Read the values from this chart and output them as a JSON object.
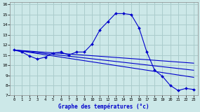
{
  "title": "Graphe des températures (°c)",
  "bg_color": "#cce8e8",
  "grid_color": "#aacccc",
  "line_color": "#0000cc",
  "xlim": [
    -0.5,
    23.5
  ],
  "ylim": [
    7,
    16.2
  ],
  "xticks": [
    0,
    1,
    2,
    3,
    4,
    5,
    6,
    7,
    8,
    9,
    10,
    11,
    12,
    13,
    14,
    15,
    16,
    17,
    18,
    19,
    20,
    21,
    22,
    23
  ],
  "yticks": [
    7,
    8,
    9,
    10,
    11,
    12,
    13,
    14,
    15,
    16
  ],
  "series_main": {
    "x": [
      0,
      1,
      2,
      3,
      4,
      5,
      6,
      7,
      8,
      9,
      10,
      11,
      12,
      13,
      14,
      15,
      16,
      17,
      18,
      19,
      20,
      21,
      22,
      23
    ],
    "y": [
      11.5,
      11.3,
      10.9,
      10.6,
      10.8,
      11.2,
      11.3,
      11.0,
      11.3,
      11.3,
      12.1,
      13.5,
      14.3,
      15.1,
      15.1,
      15.0,
      13.7,
      11.3,
      9.5,
      8.9,
      8.0,
      7.5,
      7.7,
      7.6
    ]
  },
  "fan_lines": [
    {
      "x": [
        0,
        23
      ],
      "y": [
        11.5,
        10.2
      ]
    },
    {
      "x": [
        0,
        23
      ],
      "y": [
        11.5,
        9.5
      ]
    },
    {
      "x": [
        0,
        23
      ],
      "y": [
        11.5,
        8.8
      ]
    }
  ]
}
